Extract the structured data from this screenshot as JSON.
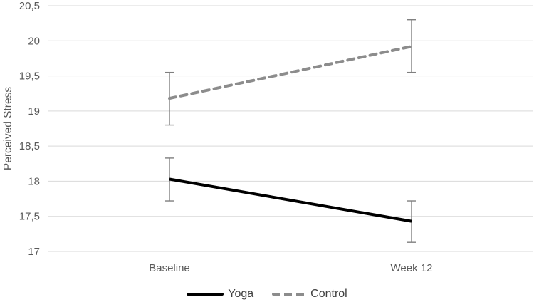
{
  "chart": {
    "ylabel": "Perceived Stress"
  },
  "chart_data": {
    "type": "line",
    "categories": [
      "Baseline",
      "Week 12"
    ],
    "series": [
      {
        "name": "Yoga",
        "values": [
          18.03,
          17.43
        ],
        "error_upper": [
          18.33,
          17.72
        ],
        "error_lower": [
          17.72,
          17.13
        ],
        "color": "#000000",
        "line_style": "solid"
      },
      {
        "name": "Control",
        "values": [
          19.18,
          19.92
        ],
        "error_upper": [
          19.55,
          20.3
        ],
        "error_lower": [
          18.8,
          19.55
        ],
        "color": "#8c8c8c",
        "line_style": "dashed"
      }
    ],
    "title": "",
    "xlabel": "",
    "ylabel": "Perceived Stress",
    "ylim": [
      17,
      20.5
    ],
    "ytick_step": 0.5,
    "ytick_labels": [
      "17",
      "17,5",
      "18",
      "18,5",
      "19",
      "19,5",
      "20",
      "20,5"
    ],
    "decimal_separator": ",",
    "grid": true,
    "legend_position": "bottom",
    "error_bars": true
  },
  "colors": {
    "grid": "#d9d9d9",
    "axis_text": "#595959",
    "error_bar": "#7f7f7f",
    "background": "#ffffff"
  }
}
